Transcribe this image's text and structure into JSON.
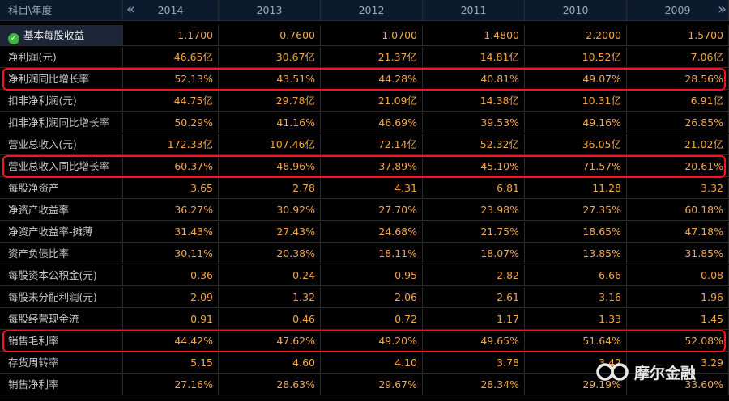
{
  "header": {
    "corner_label": "科目\\年度",
    "years": [
      "2014",
      "2013",
      "2012",
      "2011",
      "2010",
      "2009"
    ]
  },
  "rows": [
    {
      "label": "基本每股收益",
      "values": [
        "1.1700",
        "0.7600",
        "1.0700",
        "1.4800",
        "2.2000",
        "1.5700"
      ]
    },
    {
      "label": "净利润(元)",
      "values": [
        "46.65亿",
        "30.67亿",
        "21.37亿",
        "14.81亿",
        "10.52亿",
        "7.06亿"
      ]
    },
    {
      "label": "净利润同比增长率",
      "values": [
        "52.13%",
        "43.51%",
        "44.28%",
        "40.81%",
        "49.07%",
        "28.56%"
      ]
    },
    {
      "label": "扣非净利润(元)",
      "values": [
        "44.75亿",
        "29.78亿",
        "21.09亿",
        "14.38亿",
        "10.31亿",
        "6.91亿"
      ]
    },
    {
      "label": "扣非净利润同比增长率",
      "values": [
        "50.29%",
        "41.16%",
        "46.69%",
        "39.53%",
        "49.16%",
        "26.85%"
      ]
    },
    {
      "label": "营业总收入(元)",
      "values": [
        "172.33亿",
        "107.46亿",
        "72.14亿",
        "52.32亿",
        "36.05亿",
        "21.02亿"
      ]
    },
    {
      "label": "营业总收入同比增长率",
      "values": [
        "60.37%",
        "48.96%",
        "37.89%",
        "45.10%",
        "71.57%",
        "20.61%"
      ]
    },
    {
      "label": "每股净资产",
      "values": [
        "3.65",
        "2.78",
        "4.31",
        "6.81",
        "11.28",
        "3.32"
      ]
    },
    {
      "label": "净资产收益率",
      "values": [
        "36.27%",
        "30.92%",
        "27.70%",
        "23.98%",
        "27.35%",
        "60.18%"
      ]
    },
    {
      "label": "净资产收益率-摊薄",
      "values": [
        "31.43%",
        "27.43%",
        "24.68%",
        "21.75%",
        "18.65%",
        "47.18%"
      ]
    },
    {
      "label": "资产负债比率",
      "values": [
        "30.11%",
        "20.38%",
        "18.11%",
        "18.07%",
        "13.85%",
        "31.85%"
      ]
    },
    {
      "label": "每股资本公积金(元)",
      "values": [
        "0.36",
        "0.24",
        "0.95",
        "2.82",
        "6.66",
        "0.08"
      ]
    },
    {
      "label": "每股未分配利润(元)",
      "values": [
        "2.09",
        "1.32",
        "2.06",
        "2.61",
        "3.16",
        "1.96"
      ]
    },
    {
      "label": "每股经营现金流",
      "values": [
        "0.91",
        "0.46",
        "0.72",
        "1.17",
        "1.33",
        "1.45"
      ]
    },
    {
      "label": "销售毛利率",
      "values": [
        "44.42%",
        "47.62%",
        "49.20%",
        "49.65%",
        "51.64%",
        "52.08%"
      ]
    },
    {
      "label": "存货周转率",
      "values": [
        "5.15",
        "4.60",
        "4.10",
        "3.78",
        "3.42",
        "3.29"
      ]
    },
    {
      "label": "销售净利率",
      "values": [
        "27.16%",
        "28.63%",
        "29.67%",
        "28.34%",
        "29.19%",
        "33.60%"
      ]
    }
  ],
  "highlighted_rows": [
    2,
    6,
    14
  ],
  "watermark": {
    "text": "摩尔金融",
    "icon": "moer-logo-icon"
  },
  "nav": {
    "prev_icon": "«",
    "next_icon": "»"
  },
  "colors": {
    "value": "#f2a64a",
    "label": "#c8c8c8",
    "highlight": "#ff1020",
    "header_bg": "#0c1a2e"
  }
}
